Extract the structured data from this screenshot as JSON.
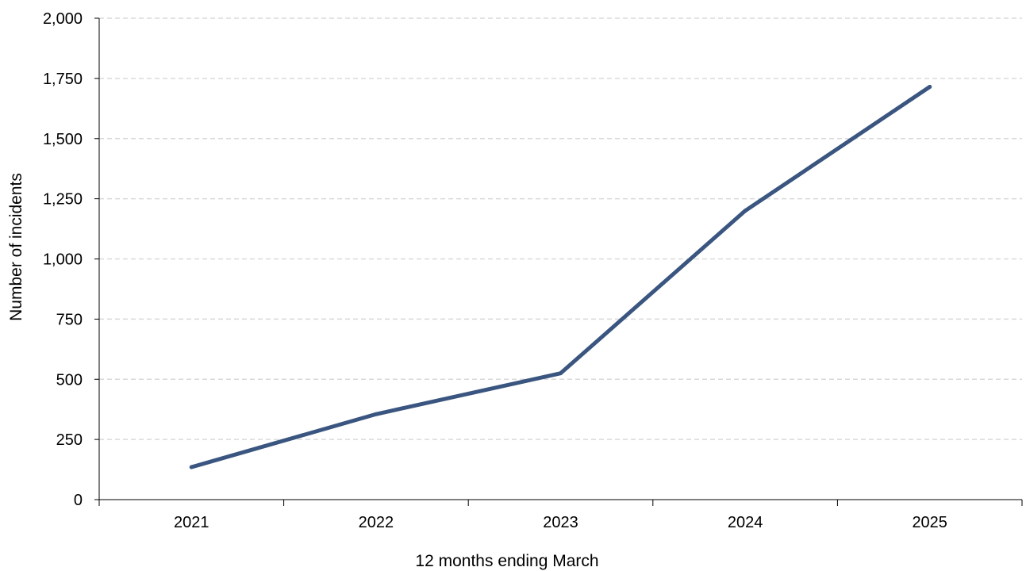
{
  "chart_data": {
    "type": "line",
    "title": "",
    "xlabel": "12 months ending March",
    "ylabel": "Number of incidents",
    "categories": [
      "2021",
      "2022",
      "2023",
      "2024",
      "2025"
    ],
    "series": [
      {
        "name": "",
        "values": [
          135,
          355,
          525,
          1200,
          1715
        ],
        "color": "#3a5680"
      }
    ],
    "ylim": [
      0,
      2000
    ],
    "yticks": [
      0,
      250,
      500,
      750,
      1000,
      1250,
      1500,
      1750,
      2000
    ],
    "ytick_labels": [
      "0",
      "250",
      "500",
      "750",
      "1,000",
      "1,250",
      "1,500",
      "1,750",
      "2,000"
    ],
    "grid": true,
    "grid_style": "dashed",
    "grid_color": "#d9d9d9",
    "axis_color": "#000000",
    "legend": "none"
  }
}
